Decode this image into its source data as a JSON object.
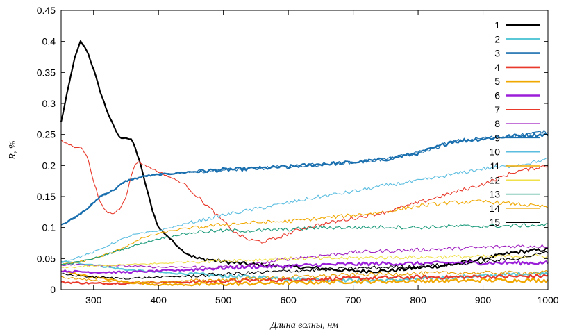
{
  "chart_data": {
    "type": "line",
    "title": "",
    "xlabel": "Длина волны, нм",
    "ylabel": "R, %",
    "xlim": [
      250,
      1000
    ],
    "ylim": [
      0,
      0.45
    ],
    "xticks": [
      300,
      400,
      500,
      600,
      700,
      800,
      900,
      1000
    ],
    "yticks": [
      0,
      0.05,
      0.1,
      0.15,
      0.2,
      0.25,
      0.3,
      0.35,
      0.4,
      0.45
    ],
    "grid": false,
    "legend_position": "top-right",
    "series": [
      {
        "name": "1",
        "color": "#000000",
        "lw": 2.2,
        "points": [
          [
            250,
            0.27
          ],
          [
            260,
            0.32
          ],
          [
            270,
            0.37
          ],
          [
            280,
            0.4
          ],
          [
            290,
            0.385
          ],
          [
            300,
            0.355
          ],
          [
            310,
            0.32
          ],
          [
            320,
            0.29
          ],
          [
            330,
            0.265
          ],
          [
            340,
            0.245
          ],
          [
            350,
            0.245
          ],
          [
            360,
            0.24
          ],
          [
            370,
            0.21
          ],
          [
            380,
            0.17
          ],
          [
            390,
            0.13
          ],
          [
            400,
            0.1
          ],
          [
            420,
            0.08
          ],
          [
            440,
            0.06
          ],
          [
            460,
            0.05
          ],
          [
            480,
            0.048
          ],
          [
            500,
            0.045
          ],
          [
            550,
            0.04
          ],
          [
            600,
            0.037
          ],
          [
            650,
            0.034
          ],
          [
            700,
            0.03
          ],
          [
            750,
            0.03
          ],
          [
            800,
            0.035
          ],
          [
            850,
            0.04
          ],
          [
            900,
            0.05
          ],
          [
            950,
            0.06
          ],
          [
            1000,
            0.065
          ]
        ]
      },
      {
        "name": "2",
        "color": "#5bc8d8",
        "lw": 2.2,
        "points": [
          [
            250,
            0.045
          ],
          [
            300,
            0.04
          ],
          [
            350,
            0.032
          ],
          [
            400,
            0.028
          ],
          [
            450,
            0.025
          ],
          [
            500,
            0.022
          ],
          [
            550,
            0.02
          ],
          [
            600,
            0.018
          ],
          [
            650,
            0.016
          ],
          [
            700,
            0.015
          ],
          [
            750,
            0.015
          ],
          [
            800,
            0.017
          ],
          [
            850,
            0.02
          ],
          [
            900,
            0.022
          ],
          [
            950,
            0.025
          ],
          [
            1000,
            0.027
          ]
        ]
      },
      {
        "name": "3",
        "color": "#1a6fae",
        "lw": 2.2,
        "points": [
          [
            250,
            0.105
          ],
          [
            270,
            0.115
          ],
          [
            290,
            0.13
          ],
          [
            310,
            0.15
          ],
          [
            330,
            0.16
          ],
          [
            350,
            0.175
          ],
          [
            380,
            0.183
          ],
          [
            400,
            0.185
          ],
          [
            450,
            0.19
          ],
          [
            500,
            0.193
          ],
          [
            550,
            0.195
          ],
          [
            600,
            0.198
          ],
          [
            650,
            0.202
          ],
          [
            700,
            0.205
          ],
          [
            750,
            0.21
          ],
          [
            800,
            0.22
          ],
          [
            830,
            0.23
          ],
          [
            850,
            0.238
          ],
          [
            870,
            0.24
          ],
          [
            900,
            0.243
          ],
          [
            950,
            0.248
          ],
          [
            1000,
            0.25
          ]
        ]
      },
      {
        "name": "4",
        "color": "#e8392b",
        "lw": 2.2,
        "points": [
          [
            250,
            0.012
          ],
          [
            300,
            0.01
          ],
          [
            350,
            0.01
          ],
          [
            400,
            0.012
          ],
          [
            450,
            0.012
          ],
          [
            500,
            0.014
          ],
          [
            550,
            0.015
          ],
          [
            600,
            0.016
          ],
          [
            650,
            0.017
          ],
          [
            700,
            0.018
          ],
          [
            750,
            0.019
          ],
          [
            800,
            0.02
          ],
          [
            850,
            0.02
          ],
          [
            900,
            0.021
          ],
          [
            950,
            0.021
          ],
          [
            1000,
            0.022
          ]
        ]
      },
      {
        "name": "5",
        "color": "#f0a800",
        "lw": 2.2,
        "points": [
          [
            250,
            0.03
          ],
          [
            300,
            0.02
          ],
          [
            350,
            0.012
          ],
          [
            400,
            0.008
          ],
          [
            450,
            0.008
          ],
          [
            500,
            0.009
          ],
          [
            550,
            0.01
          ],
          [
            600,
            0.011
          ],
          [
            650,
            0.012
          ],
          [
            700,
            0.013
          ],
          [
            750,
            0.013
          ],
          [
            800,
            0.014
          ],
          [
            850,
            0.014
          ],
          [
            900,
            0.015
          ],
          [
            950,
            0.015
          ],
          [
            1000,
            0.015
          ]
        ]
      },
      {
        "name": "6",
        "color": "#9b1fd8",
        "lw": 2.2,
        "points": [
          [
            250,
            0.03
          ],
          [
            300,
            0.028
          ],
          [
            350,
            0.028
          ],
          [
            400,
            0.03
          ],
          [
            450,
            0.032
          ],
          [
            500,
            0.035
          ],
          [
            550,
            0.037
          ],
          [
            600,
            0.038
          ],
          [
            650,
            0.04
          ],
          [
            700,
            0.041
          ],
          [
            750,
            0.042
          ],
          [
            800,
            0.042
          ],
          [
            850,
            0.043
          ],
          [
            900,
            0.043
          ],
          [
            950,
            0.043
          ],
          [
            1000,
            0.043
          ]
        ]
      },
      {
        "name": "7",
        "color": "#e8392b",
        "lw": 1.1,
        "points": [
          [
            250,
            0.24
          ],
          [
            260,
            0.235
          ],
          [
            270,
            0.23
          ],
          [
            280,
            0.23
          ],
          [
            290,
            0.215
          ],
          [
            300,
            0.175
          ],
          [
            310,
            0.14
          ],
          [
            320,
            0.125
          ],
          [
            330,
            0.122
          ],
          [
            340,
            0.13
          ],
          [
            350,
            0.15
          ],
          [
            360,
            0.19
          ],
          [
            365,
            0.205
          ],
          [
            370,
            0.205
          ],
          [
            380,
            0.2
          ],
          [
            400,
            0.19
          ],
          [
            420,
            0.18
          ],
          [
            440,
            0.17
          ],
          [
            460,
            0.15
          ],
          [
            480,
            0.13
          ],
          [
            500,
            0.11
          ],
          [
            520,
            0.09
          ],
          [
            540,
            0.08
          ],
          [
            560,
            0.077
          ],
          [
            580,
            0.082
          ],
          [
            600,
            0.09
          ],
          [
            620,
            0.098
          ],
          [
            650,
            0.105
          ],
          [
            700,
            0.115
          ],
          [
            750,
            0.125
          ],
          [
            800,
            0.14
          ],
          [
            850,
            0.155
          ],
          [
            900,
            0.17
          ],
          [
            950,
            0.19
          ],
          [
            1000,
            0.2
          ]
        ]
      },
      {
        "name": "8",
        "color": "#a020c0",
        "lw": 1.1,
        "points": [
          [
            250,
            0.04
          ],
          [
            300,
            0.04
          ],
          [
            350,
            0.038
          ],
          [
            400,
            0.036
          ],
          [
            450,
            0.036
          ],
          [
            500,
            0.036
          ],
          [
            550,
            0.04
          ],
          [
            600,
            0.05
          ],
          [
            650,
            0.055
          ],
          [
            700,
            0.06
          ],
          [
            750,
            0.062
          ],
          [
            800,
            0.064
          ],
          [
            850,
            0.066
          ],
          [
            900,
            0.068
          ],
          [
            950,
            0.07
          ],
          [
            1000,
            0.07
          ]
        ]
      },
      {
        "name": "9",
        "color": "#1a6fae",
        "lw": 1.1,
        "points": [
          [
            250,
            0.105
          ],
          [
            270,
            0.115
          ],
          [
            290,
            0.13
          ],
          [
            310,
            0.15
          ],
          [
            330,
            0.16
          ],
          [
            350,
            0.175
          ],
          [
            380,
            0.183
          ],
          [
            400,
            0.186
          ],
          [
            450,
            0.19
          ],
          [
            500,
            0.193
          ],
          [
            550,
            0.195
          ],
          [
            600,
            0.198
          ],
          [
            650,
            0.202
          ],
          [
            700,
            0.205
          ],
          [
            750,
            0.21
          ],
          [
            800,
            0.22
          ],
          [
            830,
            0.23
          ],
          [
            850,
            0.238
          ],
          [
            870,
            0.241
          ],
          [
            900,
            0.244
          ],
          [
            950,
            0.248
          ],
          [
            1000,
            0.255
          ]
        ]
      },
      {
        "name": "10",
        "color": "#5bbde0",
        "lw": 1.1,
        "points": [
          [
            250,
            0.045
          ],
          [
            270,
            0.05
          ],
          [
            300,
            0.06
          ],
          [
            330,
            0.075
          ],
          [
            360,
            0.088
          ],
          [
            400,
            0.095
          ],
          [
            450,
            0.108
          ],
          [
            500,
            0.12
          ],
          [
            550,
            0.13
          ],
          [
            600,
            0.14
          ],
          [
            650,
            0.15
          ],
          [
            700,
            0.158
          ],
          [
            750,
            0.168
          ],
          [
            800,
            0.175
          ],
          [
            850,
            0.185
          ],
          [
            900,
            0.195
          ],
          [
            950,
            0.2
          ],
          [
            1000,
            0.21
          ]
        ]
      },
      {
        "name": "11",
        "color": "#f0a800",
        "lw": 1.1,
        "points": [
          [
            250,
            0.04
          ],
          [
            280,
            0.045
          ],
          [
            300,
            0.05
          ],
          [
            330,
            0.06
          ],
          [
            360,
            0.075
          ],
          [
            380,
            0.085
          ],
          [
            400,
            0.09
          ],
          [
            430,
            0.097
          ],
          [
            460,
            0.1
          ],
          [
            500,
            0.105
          ],
          [
            550,
            0.108
          ],
          [
            600,
            0.11
          ],
          [
            650,
            0.115
          ],
          [
            700,
            0.12
          ],
          [
            750,
            0.125
          ],
          [
            800,
            0.135
          ],
          [
            850,
            0.14
          ],
          [
            900,
            0.142
          ],
          [
            950,
            0.138
          ],
          [
            1000,
            0.133
          ]
        ]
      },
      {
        "name": "12",
        "color": "#f0e04a",
        "lw": 1.1,
        "points": [
          [
            250,
            0.035
          ],
          [
            300,
            0.038
          ],
          [
            350,
            0.04
          ],
          [
            400,
            0.042
          ],
          [
            450,
            0.045
          ],
          [
            500,
            0.047
          ],
          [
            550,
            0.048
          ],
          [
            600,
            0.05
          ],
          [
            650,
            0.05
          ],
          [
            700,
            0.051
          ],
          [
            750,
            0.052
          ],
          [
            800,
            0.052
          ],
          [
            850,
            0.053
          ],
          [
            900,
            0.053
          ],
          [
            950,
            0.054
          ],
          [
            1000,
            0.054
          ]
        ]
      },
      {
        "name": "13",
        "color": "#1a9a7a",
        "lw": 1.1,
        "points": [
          [
            250,
            0.04
          ],
          [
            280,
            0.045
          ],
          [
            300,
            0.05
          ],
          [
            330,
            0.06
          ],
          [
            360,
            0.07
          ],
          [
            400,
            0.082
          ],
          [
            430,
            0.088
          ],
          [
            460,
            0.093
          ],
          [
            500,
            0.095
          ],
          [
            550,
            0.095
          ],
          [
            600,
            0.097
          ],
          [
            650,
            0.1
          ],
          [
            700,
            0.1
          ],
          [
            750,
            0.101
          ],
          [
            800,
            0.1
          ],
          [
            850,
            0.102
          ],
          [
            900,
            0.102
          ],
          [
            950,
            0.103
          ],
          [
            1000,
            0.104
          ]
        ]
      },
      {
        "name": "14",
        "color": "#e8a000",
        "lw": 1.1,
        "points": [
          [
            250,
            0.02
          ],
          [
            300,
            0.015
          ],
          [
            350,
            0.012
          ],
          [
            400,
            0.012
          ],
          [
            450,
            0.014
          ],
          [
            500,
            0.016
          ],
          [
            550,
            0.018
          ],
          [
            600,
            0.02
          ],
          [
            650,
            0.022
          ],
          [
            700,
            0.024
          ],
          [
            750,
            0.025
          ],
          [
            800,
            0.026
          ],
          [
            850,
            0.027
          ],
          [
            900,
            0.027
          ],
          [
            950,
            0.027
          ],
          [
            1000,
            0.028
          ]
        ]
      },
      {
        "name": "15",
        "color": "#000000",
        "lw": 1.1,
        "points": [
          [
            250,
            0.025
          ],
          [
            300,
            0.02
          ],
          [
            350,
            0.018
          ],
          [
            400,
            0.02
          ],
          [
            450,
            0.022
          ],
          [
            500,
            0.025
          ],
          [
            550,
            0.027
          ],
          [
            600,
            0.03
          ],
          [
            650,
            0.032
          ],
          [
            700,
            0.034
          ],
          [
            750,
            0.036
          ],
          [
            800,
            0.038
          ],
          [
            850,
            0.04
          ],
          [
            900,
            0.045
          ],
          [
            950,
            0.05
          ],
          [
            1000,
            0.06
          ]
        ]
      }
    ]
  }
}
